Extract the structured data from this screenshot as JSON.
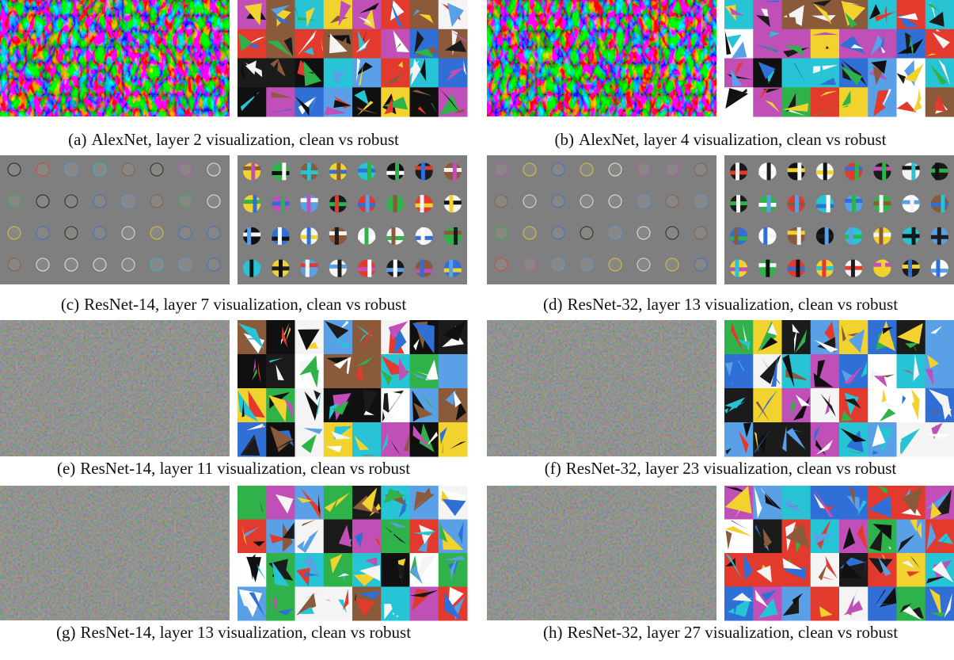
{
  "figures": [
    {
      "label": "(a)",
      "caption": "AlexNet, layer 2 visualization, clean vs robust"
    },
    {
      "label": "(b)",
      "caption": "AlexNet, layer 4 visualization, clean vs robust"
    },
    {
      "label": "(c)",
      "caption": "ResNet-14, layer 7 visualization, clean vs robust"
    },
    {
      "label": "(d)",
      "caption": "ResNet-32, layer 13 visualization, clean vs robust"
    },
    {
      "label": "(e)",
      "caption": "ResNet-14, layer 11 visualization, clean vs robust"
    },
    {
      "label": "(f)",
      "caption": "ResNet-32, layer 23 visualization, clean vs robust"
    },
    {
      "label": "(g)",
      "caption": "ResNet-14, layer 13 visualization, clean vs robust"
    },
    {
      "label": "(h)",
      "caption": "ResNet-32, layer 27 visualization, clean vs robust"
    }
  ]
}
